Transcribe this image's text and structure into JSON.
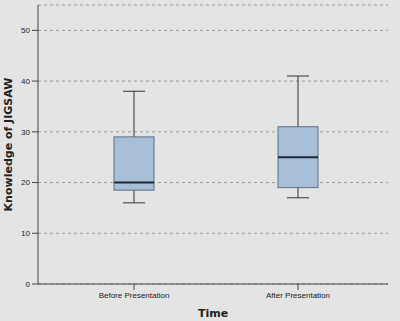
{
  "chart_data": {
    "type": "box",
    "x_label": "Time",
    "y_label": "Knowledge of JIGSAW",
    "categories": [
      "Before Presentation",
      "After Presentation"
    ],
    "min": [
      16,
      17
    ],
    "q1": [
      18.5,
      19
    ],
    "median": [
      20,
      25
    ],
    "q3": [
      29,
      31
    ],
    "max": [
      38,
      41
    ],
    "color": "#a7bfd7",
    "ylim": [
      0,
      55
    ],
    "yticks": [
      0,
      10,
      20,
      30,
      40,
      50
    ],
    "grid": true
  }
}
